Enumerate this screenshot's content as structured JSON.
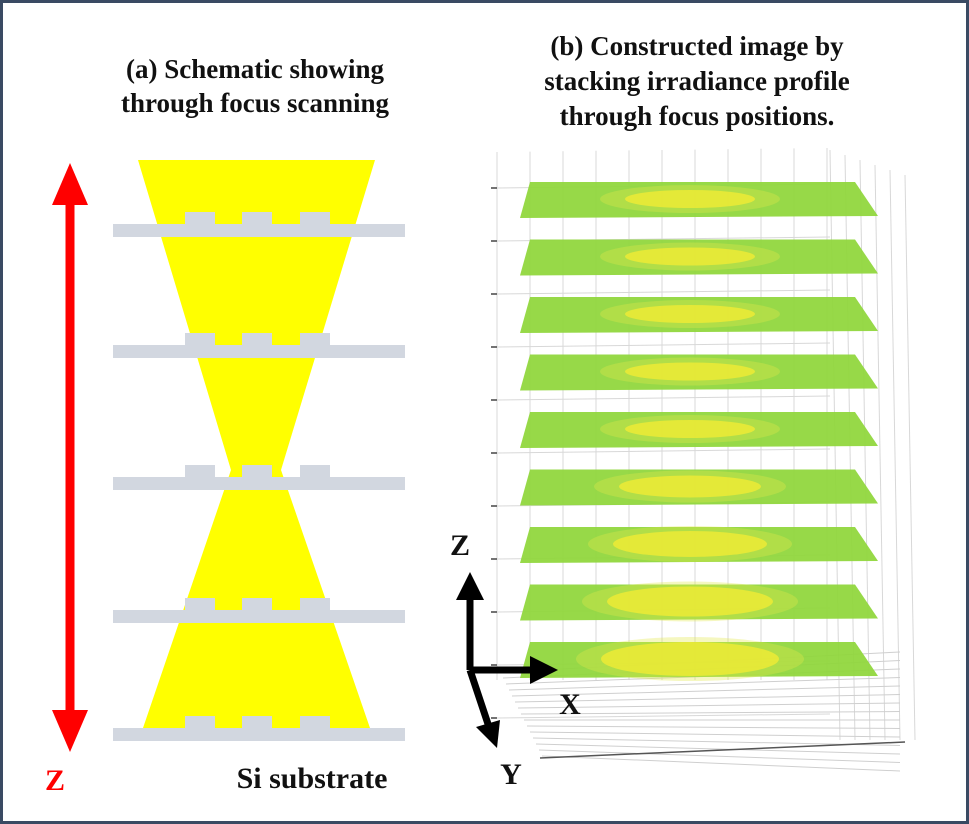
{
  "panel_a": {
    "title": [
      "(a) Schematic showing",
      "through focus scanning"
    ],
    "axis_label": "Z",
    "substrate_label": "Si substrate"
  },
  "panel_b": {
    "title": [
      "(b) Constructed image by",
      "stacking irradiance profile",
      "through focus positions."
    ],
    "axes": {
      "z": "Z",
      "x": "X",
      "y": "Y"
    }
  }
}
